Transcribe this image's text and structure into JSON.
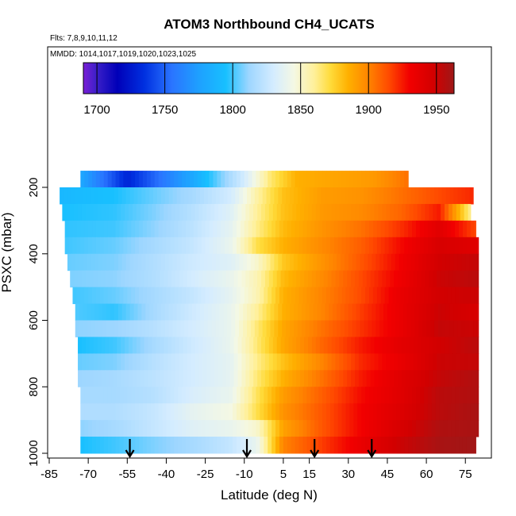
{
  "chart_data": {
    "type": "heatmap",
    "title": "ATOM3 Northbound CH4_UCATS",
    "subtitle_flights": "Flts: 7,8,9,10,11,12",
    "subtitle_dates": "MMDD: 1014,1017,1019,1020,1023,1025",
    "xlabel": "Latitude (deg N)",
    "ylabel": "PSXC (mbar)",
    "xlim": [
      -85,
      85
    ],
    "ylim": [
      1000,
      100
    ],
    "x_ticks": [
      -85,
      -70,
      -55,
      -40,
      -25,
      -10,
      5,
      15,
      30,
      45,
      60,
      75
    ],
    "x_tick_labels": [
      "-85",
      "-70",
      "-55",
      "-40",
      "-25",
      "-10",
      "5",
      "15",
      "30",
      "45",
      "60",
      "75"
    ],
    "y_ticks": [
      200,
      400,
      600,
      800,
      1000
    ],
    "y_tick_labels": [
      "200",
      "400",
      "600",
      "800",
      "1000"
    ],
    "colorbar": {
      "range": [
        1690,
        1963
      ],
      "ticks": [
        1700,
        1750,
        1800,
        1850,
        1900,
        1950
      ],
      "tick_labels": [
        "1700",
        "1750",
        "1800",
        "1850",
        "1900",
        "1950"
      ],
      "stops": [
        {
          "value": 1690,
          "color": "#7a1fd6"
        },
        {
          "value": 1700,
          "color": "#3a1fc8"
        },
        {
          "value": 1715,
          "color": "#0000b8"
        },
        {
          "value": 1735,
          "color": "#0030e0"
        },
        {
          "value": 1755,
          "color": "#2a74ff"
        },
        {
          "value": 1775,
          "color": "#1ea0ff"
        },
        {
          "value": 1795,
          "color": "#18c0ff"
        },
        {
          "value": 1812,
          "color": "#9ed6ff"
        },
        {
          "value": 1830,
          "color": "#d4ecff"
        },
        {
          "value": 1845,
          "color": "#f4f8e4"
        },
        {
          "value": 1860,
          "color": "#fff09a"
        },
        {
          "value": 1872,
          "color": "#ffdb3a"
        },
        {
          "value": 1885,
          "color": "#ffb000"
        },
        {
          "value": 1900,
          "color": "#ff8400"
        },
        {
          "value": 1915,
          "color": "#ff4a00"
        },
        {
          "value": 1930,
          "color": "#f20000"
        },
        {
          "value": 1948,
          "color": "#d20000"
        },
        {
          "value": 1963,
          "color": "#9e1818"
        }
      ]
    },
    "pressure_levels": [
      175,
      225,
      275,
      325,
      375,
      425,
      475,
      525,
      575,
      625,
      675,
      725,
      775,
      825,
      875,
      925,
      975
    ],
    "latitude_extent": [
      [
        -73,
        53
      ],
      [
        -81,
        78
      ],
      [
        -80,
        77
      ],
      [
        -79,
        79
      ],
      [
        -79,
        80
      ],
      [
        -78,
        80
      ],
      [
        -77,
        80
      ],
      [
        -76,
        80
      ],
      [
        -75,
        80
      ],
      [
        -75,
        80
      ],
      [
        -74,
        80
      ],
      [
        -74,
        80
      ],
      [
        -74,
        80
      ],
      [
        -73,
        80
      ],
      [
        -73,
        80
      ],
      [
        -73,
        80
      ],
      [
        -73,
        79
      ]
    ],
    "profile_knots": [
      {
        "lat": [
          -73,
          -55,
          -50,
          -30,
          -10,
          0,
          10,
          20,
          30,
          40,
          53
        ],
        "ch4": [
          1780,
          1730,
          1740,
          1780,
          1830,
          1865,
          1885,
          1888,
          1890,
          1893,
          1905
        ]
      },
      {
        "lat": [
          -81,
          -60,
          -45,
          -30,
          -15,
          -5,
          5,
          20,
          35,
          50,
          65,
          78
        ],
        "ch4": [
          1790,
          1795,
          1805,
          1815,
          1830,
          1858,
          1880,
          1892,
          1895,
          1905,
          1915,
          1922
        ]
      },
      {
        "lat": [
          -80,
          -60,
          -45,
          -30,
          -15,
          -5,
          5,
          20,
          35,
          50,
          65,
          77
        ],
        "ch4": [
          1795,
          1798,
          1808,
          1820,
          1835,
          1860,
          1880,
          1893,
          1898,
          1908,
          1925,
          1860
        ]
      },
      {
        "lat": [
          -79,
          -60,
          -45,
          -30,
          -15,
          -5,
          5,
          20,
          35,
          50,
          65,
          79
        ],
        "ch4": [
          1798,
          1800,
          1810,
          1822,
          1838,
          1862,
          1882,
          1895,
          1905,
          1920,
          1940,
          1915
        ]
      },
      {
        "lat": [
          -79,
          -60,
          -45,
          -30,
          -15,
          -5,
          5,
          20,
          35,
          50,
          65,
          80
        ],
        "ch4": [
          1800,
          1805,
          1815,
          1825,
          1840,
          1870,
          1885,
          1898,
          1910,
          1928,
          1945,
          1940
        ]
      },
      {
        "lat": [
          -78,
          -60,
          -45,
          -30,
          -15,
          -5,
          5,
          20,
          35,
          50,
          65,
          80
        ],
        "ch4": [
          1805,
          1808,
          1818,
          1828,
          1835,
          1850,
          1878,
          1895,
          1912,
          1930,
          1948,
          1952
        ]
      },
      {
        "lat": [
          -77,
          -60,
          -45,
          -30,
          -15,
          -5,
          5,
          20,
          35,
          50,
          65,
          80
        ],
        "ch4": [
          1808,
          1810,
          1818,
          1830,
          1840,
          1855,
          1882,
          1898,
          1915,
          1932,
          1950,
          1955
        ]
      },
      {
        "lat": [
          -76,
          -60,
          -45,
          -30,
          -15,
          -5,
          5,
          20,
          35,
          50,
          65,
          80
        ],
        "ch4": [
          1800,
          1805,
          1815,
          1825,
          1838,
          1855,
          1885,
          1900,
          1915,
          1935,
          1948,
          1950
        ]
      },
      {
        "lat": [
          -75,
          -60,
          -45,
          -30,
          -15,
          -5,
          5,
          20,
          35,
          50,
          65,
          80
        ],
        "ch4": [
          1802,
          1798,
          1815,
          1828,
          1840,
          1860,
          1885,
          1900,
          1918,
          1935,
          1950,
          1945
        ]
      },
      {
        "lat": [
          -75,
          -60,
          -45,
          -30,
          -15,
          -5,
          5,
          20,
          35,
          50,
          65,
          80
        ],
        "ch4": [
          1810,
          1812,
          1820,
          1830,
          1840,
          1865,
          1888,
          1905,
          1920,
          1935,
          1952,
          1950
        ]
      },
      {
        "lat": [
          -74,
          -60,
          -45,
          -30,
          -15,
          -5,
          5,
          20,
          35,
          50,
          65,
          80
        ],
        "ch4": [
          1795,
          1800,
          1815,
          1828,
          1840,
          1865,
          1888,
          1908,
          1925,
          1938,
          1948,
          1955
        ]
      },
      {
        "lat": [
          -74,
          -60,
          -45,
          -30,
          -15,
          -5,
          5,
          20,
          35,
          50,
          65,
          80
        ],
        "ch4": [
          1805,
          1808,
          1820,
          1830,
          1838,
          1862,
          1880,
          1900,
          1922,
          1935,
          1950,
          1952
        ]
      },
      {
        "lat": [
          -74,
          -60,
          -45,
          -30,
          -15,
          -5,
          5,
          20,
          35,
          50,
          65,
          80
        ],
        "ch4": [
          1812,
          1815,
          1822,
          1830,
          1838,
          1865,
          1885,
          1905,
          1925,
          1940,
          1952,
          1958
        ]
      },
      {
        "lat": [
          -73,
          -60,
          -45,
          -30,
          -15,
          -5,
          5,
          20,
          35,
          50,
          65,
          80
        ],
        "ch4": [
          1815,
          1815,
          1820,
          1832,
          1840,
          1868,
          1892,
          1910,
          1928,
          1940,
          1955,
          1958
        ]
      },
      {
        "lat": [
          -73,
          -60,
          -45,
          -30,
          -15,
          -5,
          5,
          20,
          35,
          50,
          65,
          80
        ],
        "ch4": [
          1818,
          1818,
          1825,
          1838,
          1845,
          1870,
          1895,
          1912,
          1930,
          1942,
          1955,
          1960
        ]
      },
      {
        "lat": [
          -73,
          -60,
          -45,
          -30,
          -15,
          -5,
          5,
          20,
          35,
          50,
          65,
          80
        ],
        "ch4": [
          1810,
          1815,
          1825,
          1835,
          1840,
          1850,
          1890,
          1912,
          1930,
          1945,
          1958,
          1960
        ]
      },
      {
        "lat": [
          -73,
          -60,
          -45,
          -30,
          -15,
          -5,
          5,
          20,
          35,
          50,
          65,
          79
        ],
        "ch4": [
          1795,
          1800,
          1808,
          1815,
          1825,
          1840,
          1900,
          1918,
          1935,
          1950,
          1960,
          1962
        ]
      }
    ],
    "arrow_latitudes": [
      -54,
      -9,
      17,
      39
    ],
    "arrow_pressure": 1000
  }
}
